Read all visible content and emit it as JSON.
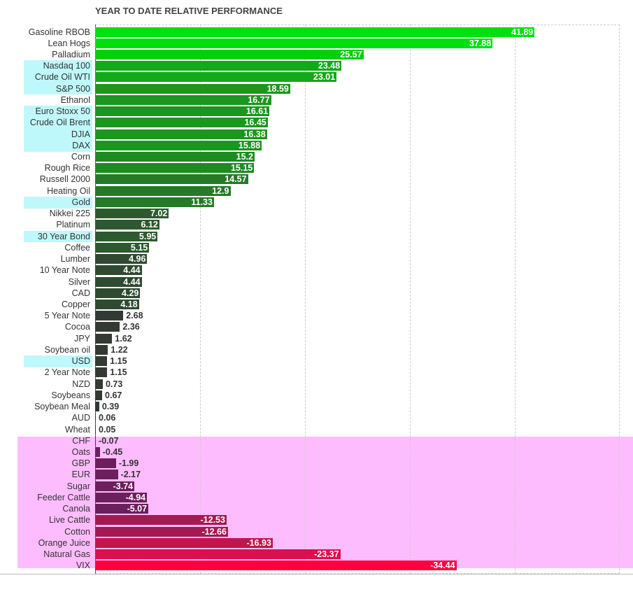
{
  "chart_data": {
    "type": "bar",
    "orientation": "horizontal",
    "title": "YEAR TO DATE RELATIVE PERFORMANCE",
    "xlim": [
      0,
      50
    ],
    "grid": true,
    "rows": [
      {
        "label": "Gasoline RBOB",
        "value": 41.89,
        "color": "#00e00e",
        "highlight": false
      },
      {
        "label": "Lean Hogs",
        "value": 37.88,
        "color": "#00e00e",
        "highlight": false
      },
      {
        "label": "Palladium",
        "value": 25.57,
        "color": "#04cf0e",
        "highlight": false
      },
      {
        "label": "Nasdaq 100",
        "value": 23.48,
        "color": "#13a91a",
        "highlight": true
      },
      {
        "label": "Crude Oil WTI",
        "value": 23.01,
        "color": "#13a91a",
        "highlight": true
      },
      {
        "label": "S&P 500",
        "value": 18.59,
        "color": "#1b961e",
        "highlight": true
      },
      {
        "label": "Ethanol",
        "value": 16.77,
        "color": "#1b961e",
        "highlight": false
      },
      {
        "label": "Euro Stoxx 50",
        "value": 16.61,
        "color": "#1b961e",
        "highlight": true
      },
      {
        "label": "Crude Oil Brent",
        "value": 16.45,
        "color": "#1b961e",
        "highlight": true
      },
      {
        "label": "DJIA",
        "value": 16.38,
        "color": "#1b961e",
        "highlight": true
      },
      {
        "label": "DAX",
        "value": 15.88,
        "color": "#1b961e",
        "highlight": true
      },
      {
        "label": "Corn",
        "value": 15.2,
        "color": "#1e8a22",
        "highlight": false
      },
      {
        "label": "Rough Rice",
        "value": 15.15,
        "color": "#1e8a22",
        "highlight": false
      },
      {
        "label": "Russell 2000",
        "value": 14.57,
        "color": "#257a27",
        "highlight": false
      },
      {
        "label": "Heating Oil",
        "value": 12.9,
        "color": "#257a27",
        "highlight": false
      },
      {
        "label": "Gold",
        "value": 11.33,
        "color": "#257a27",
        "highlight": true
      },
      {
        "label": "Nikkei 225",
        "value": 7.02,
        "color": "#2c5a2e",
        "highlight": false
      },
      {
        "label": "Platinum",
        "value": 6.12,
        "color": "#2c5a2e",
        "highlight": false
      },
      {
        "label": "30 Year Bond",
        "value": 5.95,
        "color": "#2c5a2e",
        "highlight": true
      },
      {
        "label": "Coffee",
        "value": 5.15,
        "color": "#2c5a2e",
        "highlight": false
      },
      {
        "label": "Lumber",
        "value": 4.96,
        "color": "#2e4a30",
        "highlight": false
      },
      {
        "label": "10 Year Note",
        "value": 4.44,
        "color": "#2e4a30",
        "highlight": false
      },
      {
        "label": "Silver",
        "value": 4.44,
        "color": "#2e4a30",
        "highlight": false
      },
      {
        "label": "CAD",
        "value": 4.29,
        "color": "#2e4a30",
        "highlight": false
      },
      {
        "label": "Copper",
        "value": 4.18,
        "color": "#2e4a30",
        "highlight": false
      },
      {
        "label": "5 Year Note",
        "value": 2.68,
        "color": "#333a33",
        "highlight": false
      },
      {
        "label": "Cocoa",
        "value": 2.36,
        "color": "#333a33",
        "highlight": false
      },
      {
        "label": "JPY",
        "value": 1.62,
        "color": "#333a33",
        "highlight": false
      },
      {
        "label": "Soybean oil",
        "value": 1.22,
        "color": "#333a33",
        "highlight": false
      },
      {
        "label": "USD",
        "value": 1.15,
        "color": "#333a33",
        "highlight": true
      },
      {
        "label": "2 Year Note",
        "value": 1.15,
        "color": "#333a33",
        "highlight": false
      },
      {
        "label": "NZD",
        "value": 0.73,
        "color": "#333a33",
        "highlight": false
      },
      {
        "label": "Soybeans",
        "value": 0.67,
        "color": "#333a33",
        "highlight": false
      },
      {
        "label": "Soybean Meal",
        "value": 0.39,
        "color": "#333a33",
        "highlight": false
      },
      {
        "label": "AUD",
        "value": 0.06,
        "color": "#333a33",
        "highlight": false
      },
      {
        "label": "Wheat",
        "value": 0.05,
        "color": "#333a33",
        "highlight": false
      },
      {
        "label": "CHF",
        "value": -0.07,
        "color": "#6b1f5c",
        "highlight": false
      },
      {
        "label": "Oats",
        "value": -0.45,
        "color": "#6b1f5c",
        "highlight": false
      },
      {
        "label": "GBP",
        "value": -1.99,
        "color": "#6b1f5c",
        "highlight": false
      },
      {
        "label": "EUR",
        "value": -2.17,
        "color": "#6b1f5c",
        "highlight": false
      },
      {
        "label": "Sugar",
        "value": -3.74,
        "color": "#6b1f5c",
        "highlight": false
      },
      {
        "label": "Feeder Cattle",
        "value": -4.94,
        "color": "#6b1f5c",
        "highlight": false
      },
      {
        "label": "Canola",
        "value": -5.07,
        "color": "#6b1f5c",
        "highlight": false
      },
      {
        "label": "Live Cattle",
        "value": -12.53,
        "color": "#a31a52",
        "highlight": false
      },
      {
        "label": "Cotton",
        "value": -12.66,
        "color": "#a31a52",
        "highlight": false
      },
      {
        "label": "Orange Juice",
        "value": -16.93,
        "color": "#c0154e",
        "highlight": false
      },
      {
        "label": "Natural Gas",
        "value": -23.37,
        "color": "#dc0e4c",
        "highlight": false
      },
      {
        "label": "VIX",
        "value": -34.44,
        "color": "#ff0040",
        "highlight": false
      }
    ]
  }
}
